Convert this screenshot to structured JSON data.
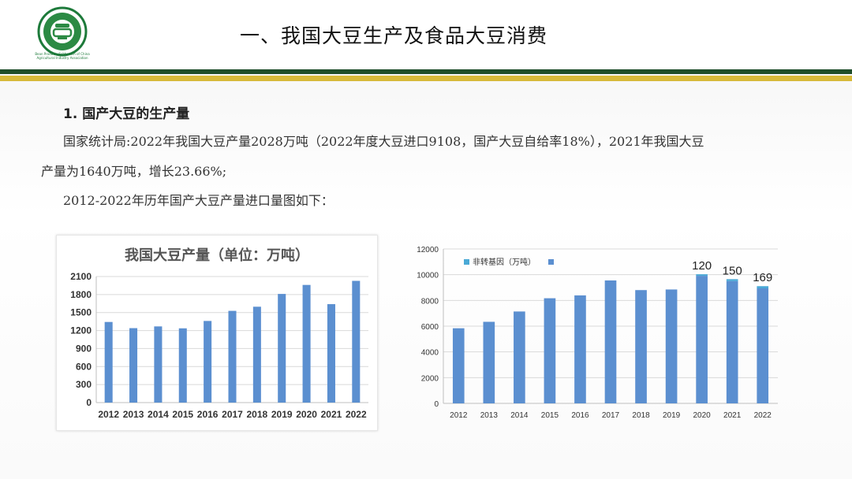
{
  "header": {
    "title": "一、我国大豆生产及食品大豆消费",
    "logo_text": "Bean Products Subbranch of China Agricultural Industry Association"
  },
  "section": {
    "heading": "1. 国产大豆的生产量",
    "line1": "国家统计局:2022年我国大豆产量2028万吨（2022年度大豆进口9108，国产大豆自给率18%），2021年我国大豆",
    "line2": "产量为1640万吨，增长23.66%;",
    "line3": "2012-2022年历年国产大豆产量进口量图如下："
  },
  "colors": {
    "bar": "#5b8fd0",
    "bar_top": "#4aa9d6",
    "band_green": "#1f4d2a",
    "band_yellow": "#d7b93a"
  },
  "chart_data": [
    {
      "type": "bar",
      "title": "我国大豆产量（单位：万吨）",
      "categories": [
        "2012",
        "2013",
        "2014",
        "2015",
        "2016",
        "2017",
        "2018",
        "2019",
        "2020",
        "2021",
        "2022"
      ],
      "values": [
        1343,
        1240,
        1269,
        1237,
        1360,
        1528,
        1597,
        1810,
        1960,
        1640,
        2028
      ],
      "ylim": [
        0,
        2100
      ],
      "yticks": [
        0,
        300,
        600,
        900,
        1200,
        1500,
        1800,
        2100
      ],
      "grid": true
    },
    {
      "type": "bar",
      "title": "",
      "categories": [
        "2012",
        "2013",
        "2014",
        "2015",
        "2016",
        "2017",
        "2018",
        "2019",
        "2020",
        "2021",
        "2022"
      ],
      "values": [
        5838,
        6338,
        7140,
        8169,
        8391,
        9553,
        8803,
        8851,
        9913,
        9502,
        8939
      ],
      "series": [
        {
          "name": "非转基因（万吨）",
          "values": [
            0,
            0,
            0,
            0,
            0,
            0,
            0,
            0,
            120,
            150,
            169
          ]
        },
        {
          "name": "",
          "values": [
            5838,
            6338,
            7140,
            8169,
            8391,
            9553,
            8803,
            8851,
            9913,
            9502,
            8939
          ]
        }
      ],
      "data_labels": {
        "2020": "120",
        "2021": "150",
        "2022": "169"
      },
      "ylim": [
        0,
        12000
      ],
      "yticks": [
        0,
        2000,
        4000,
        6000,
        8000,
        10000,
        12000
      ],
      "grid": true,
      "legend": "top-left"
    }
  ]
}
